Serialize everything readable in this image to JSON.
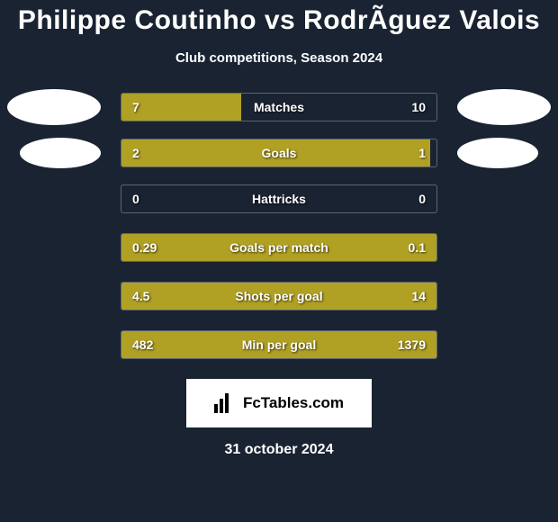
{
  "title": "Philippe Coutinho vs RodrÃ­guez Valois",
  "subtitle": "Club competitions, Season 2024",
  "colors": {
    "background": "#1a2332",
    "bar_fill": "#b0a023",
    "bar_border": "#5b6572",
    "text": "#ffffff",
    "avatar_bg": "#ffffff",
    "logo_bg": "#ffffff",
    "logo_text": "#000000"
  },
  "bars": [
    {
      "label": "Matches",
      "left": "7",
      "right": "10",
      "left_w": 38,
      "right_w": 0,
      "avatars": "large"
    },
    {
      "label": "Goals",
      "left": "2",
      "right": "1",
      "left_w": 98,
      "right_w": 0,
      "avatars": "small"
    },
    {
      "label": "Hattricks",
      "left": "0",
      "right": "0",
      "left_w": 0,
      "right_w": 0,
      "avatars": "none"
    },
    {
      "label": "Goals per match",
      "left": "0.29",
      "right": "0.1",
      "left_w": 98,
      "right_w": 2,
      "avatars": "none"
    },
    {
      "label": "Shots per goal",
      "left": "4.5",
      "right": "14",
      "left_w": 98,
      "right_w": 2,
      "avatars": "none"
    },
    {
      "label": "Min per goal",
      "left": "482",
      "right": "1379",
      "left_w": 98,
      "right_w": 2,
      "avatars": "none"
    }
  ],
  "logo_text": "FcTables.com",
  "date": "31 october 2024"
}
